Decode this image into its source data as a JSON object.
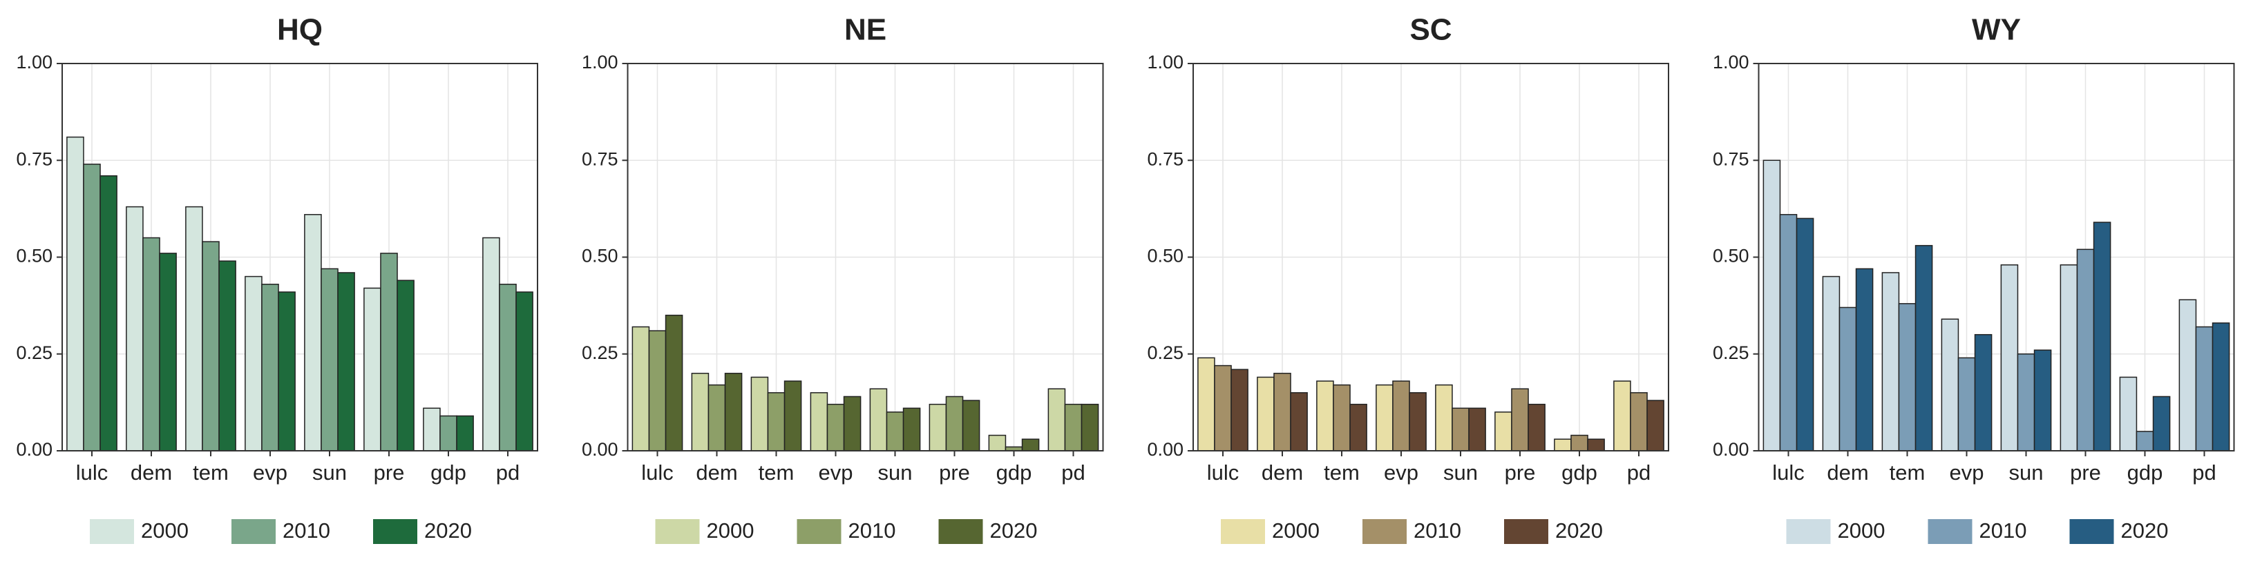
{
  "chart_data": [
    {
      "type": "bar",
      "title": "HQ",
      "categories": [
        "lulc",
        "dem",
        "tem",
        "evp",
        "sun",
        "pre",
        "gdp",
        "pd"
      ],
      "series": [
        {
          "name": "2000",
          "color": "#d4e6de",
          "values": [
            0.81,
            0.63,
            0.63,
            0.45,
            0.61,
            0.42,
            0.11,
            0.55
          ]
        },
        {
          "name": "2010",
          "color": "#7aa68a",
          "values": [
            0.74,
            0.55,
            0.54,
            0.43,
            0.47,
            0.51,
            0.09,
            0.43
          ]
        },
        {
          "name": "2020",
          "color": "#1e6b3c",
          "values": [
            0.71,
            0.51,
            0.49,
            0.41,
            0.46,
            0.44,
            0.09,
            0.41
          ]
        }
      ],
      "ylim": [
        0,
        1
      ],
      "yticks": [
        {
          "value": 0,
          "label": "0.00"
        },
        {
          "value": 0.25,
          "label": "0.25"
        },
        {
          "value": 0.5,
          "label": "0.50"
        },
        {
          "value": 0.75,
          "label": "0.75"
        },
        {
          "value": 1,
          "label": "1.00"
        }
      ],
      "grid": true
    },
    {
      "type": "bar",
      "title": "NE",
      "categories": [
        "lulc",
        "dem",
        "tem",
        "evp",
        "sun",
        "pre",
        "gdp",
        "pd"
      ],
      "series": [
        {
          "name": "2000",
          "color": "#cdd8a6",
          "values": [
            0.32,
            0.2,
            0.19,
            0.15,
            0.16,
            0.12,
            0.04,
            0.16
          ]
        },
        {
          "name": "2010",
          "color": "#8d9f68",
          "values": [
            0.31,
            0.17,
            0.15,
            0.12,
            0.1,
            0.14,
            0.01,
            0.12
          ]
        },
        {
          "name": "2020",
          "color": "#566631",
          "values": [
            0.35,
            0.2,
            0.18,
            0.14,
            0.11,
            0.13,
            0.03,
            0.12
          ]
        }
      ],
      "ylim": [
        0,
        1
      ],
      "yticks": [
        {
          "value": 0,
          "label": "0.00"
        },
        {
          "value": 0.25,
          "label": "0.25"
        },
        {
          "value": 0.5,
          "label": "0.50"
        },
        {
          "value": 0.75,
          "label": "0.75"
        },
        {
          "value": 1,
          "label": "1.00"
        }
      ],
      "grid": true
    },
    {
      "type": "bar",
      "title": "SC",
      "categories": [
        "lulc",
        "dem",
        "tem",
        "evp",
        "sun",
        "pre",
        "gdp",
        "pd"
      ],
      "series": [
        {
          "name": "2000",
          "color": "#e8dfa6",
          "values": [
            0.24,
            0.19,
            0.18,
            0.17,
            0.17,
            0.1,
            0.03,
            0.18
          ]
        },
        {
          "name": "2010",
          "color": "#a49068",
          "values": [
            0.22,
            0.2,
            0.17,
            0.18,
            0.11,
            0.16,
            0.04,
            0.15
          ]
        },
        {
          "name": "2020",
          "color": "#634532",
          "values": [
            0.21,
            0.15,
            0.12,
            0.15,
            0.11,
            0.12,
            0.03,
            0.13
          ]
        }
      ],
      "ylim": [
        0,
        1
      ],
      "yticks": [
        {
          "value": 0,
          "label": "0.00"
        },
        {
          "value": 0.25,
          "label": "0.25"
        },
        {
          "value": 0.5,
          "label": "0.50"
        },
        {
          "value": 0.75,
          "label": "0.75"
        },
        {
          "value": 1,
          "label": "1.00"
        }
      ],
      "grid": true
    },
    {
      "type": "bar",
      "title": "WY",
      "categories": [
        "lulc",
        "dem",
        "tem",
        "evp",
        "sun",
        "pre",
        "gdp",
        "pd"
      ],
      "series": [
        {
          "name": "2000",
          "color": "#cddde4",
          "values": [
            0.75,
            0.45,
            0.46,
            0.34,
            0.48,
            0.48,
            0.19,
            0.39
          ]
        },
        {
          "name": "2010",
          "color": "#7b9db6",
          "values": [
            0.61,
            0.37,
            0.38,
            0.24,
            0.25,
            0.52,
            0.05,
            0.32
          ]
        },
        {
          "name": "2020",
          "color": "#265d82",
          "values": [
            0.6,
            0.47,
            0.53,
            0.3,
            0.26,
            0.59,
            0.14,
            0.33
          ]
        }
      ],
      "ylim": [
        0,
        1
      ],
      "yticks": [
        {
          "value": 0,
          "label": "0.00"
        },
        {
          "value": 0.25,
          "label": "0.25"
        },
        {
          "value": 0.5,
          "label": "0.50"
        },
        {
          "value": 0.75,
          "label": "0.75"
        },
        {
          "value": 1,
          "label": "1.00"
        }
      ],
      "grid": true
    }
  ]
}
